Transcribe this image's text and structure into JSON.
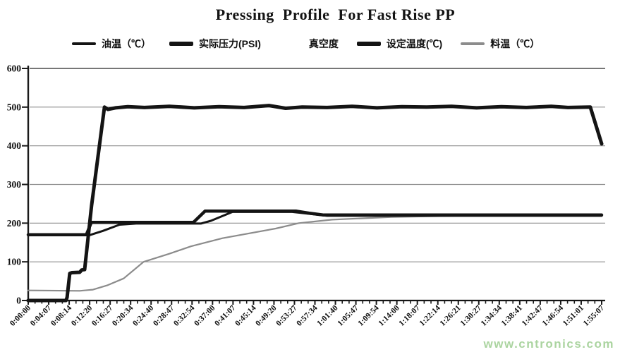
{
  "watermark": "www.cntronics.com",
  "colors": {
    "axis": "#1a1a1a",
    "grid": "#8f8f8f",
    "top_grid": "#4a4a4a",
    "tick": "#1a1a1a",
    "label": "#111111",
    "watermark_green": "#abd4a0",
    "series_black": "#141414",
    "series_gray": "#8c8c8c"
  },
  "chart_data": {
    "type": "line",
    "title": "Pressing  Profile  For Fast Rise PP",
    "xlabel": "",
    "ylabel": "",
    "grid": true,
    "legend_position": "top",
    "ylim": [
      0,
      600
    ],
    "y_ticks": [
      0,
      100,
      200,
      300,
      400,
      500,
      600
    ],
    "x_range_seconds": [
      0,
      6907
    ],
    "x_tick_labels": [
      "0:00:00",
      "0:04:07",
      "0:08:14",
      "0:12:20",
      "0:16:27",
      "0:20:34",
      "0:24:40",
      "0:28:47",
      "0:32:54",
      "0:37:00",
      "0:41:07",
      "0:45:14",
      "0:49:20",
      "0:53:27",
      "0:57:34",
      "1:01:40",
      "1:05:47",
      "1:09:54",
      "1:14:00",
      "1:18:07",
      "1:22:14",
      "1:26:21",
      "1:30:27",
      "1:34:34",
      "1:38:41",
      "1:42:47",
      "1:46:54",
      "1:51:01",
      "1:55:07"
    ],
    "series": [
      {
        "name": "油温（℃）",
        "color": "#141414",
        "width": 3,
        "legend_swatch": true,
        "points": [
          [
            0,
            169
          ],
          [
            740,
            169
          ],
          [
            900,
            180
          ],
          [
            1100,
            196
          ],
          [
            1300,
            199
          ],
          [
            2080,
            199
          ],
          [
            2200,
            206
          ],
          [
            2460,
            229
          ],
          [
            3180,
            229
          ],
          [
            3400,
            224
          ],
          [
            3600,
            219
          ],
          [
            5000,
            219
          ],
          [
            6907,
            219
          ]
        ]
      },
      {
        "name": "实际压力(PSI)",
        "color": "#141414",
        "width": 5,
        "legend_swatch": true,
        "points": [
          [
            0,
            0
          ],
          [
            440,
            0
          ],
          [
            455,
            0
          ],
          [
            468,
            8
          ],
          [
            500,
            70
          ],
          [
            527,
            72
          ],
          [
            620,
            73
          ],
          [
            645,
            79
          ],
          [
            680,
            80
          ],
          [
            763,
            245
          ],
          [
            918,
            500
          ],
          [
            960,
            494
          ],
          [
            1050,
            498
          ],
          [
            1200,
            501
          ],
          [
            1400,
            499
          ],
          [
            1700,
            502
          ],
          [
            2000,
            498
          ],
          [
            2300,
            501
          ],
          [
            2600,
            499
          ],
          [
            2900,
            504
          ],
          [
            3100,
            497
          ],
          [
            3300,
            500
          ],
          [
            3600,
            499
          ],
          [
            3900,
            502
          ],
          [
            4200,
            498
          ],
          [
            4500,
            501
          ],
          [
            4800,
            500
          ],
          [
            5100,
            502
          ],
          [
            5400,
            498
          ],
          [
            5700,
            501
          ],
          [
            6000,
            499
          ],
          [
            6300,
            502
          ],
          [
            6500,
            499
          ],
          [
            6770,
            500
          ],
          [
            6907,
            405
          ]
        ]
      },
      {
        "name": "真空度",
        "color": "#141414",
        "width": 2,
        "legend_swatch": false,
        "points": [
          [
            0,
            0
          ],
          [
            6907,
            0
          ]
        ]
      },
      {
        "name": "设定温度(℃)",
        "color": "#141414",
        "width": 4.5,
        "legend_swatch": true,
        "points": [
          [
            0,
            170
          ],
          [
            700,
            170
          ],
          [
            760,
            202
          ],
          [
            1990,
            202
          ],
          [
            2130,
            231
          ],
          [
            3230,
            231
          ],
          [
            3380,
            226
          ],
          [
            3560,
            221
          ],
          [
            6907,
            221
          ]
        ]
      },
      {
        "name": "料温（℃）",
        "color": "#8c8c8c",
        "width": 2.2,
        "legend_swatch": true,
        "points": [
          [
            0,
            26
          ],
          [
            620,
            25
          ],
          [
            780,
            28
          ],
          [
            950,
            39
          ],
          [
            1150,
            57
          ],
          [
            1390,
            100
          ],
          [
            1700,
            121
          ],
          [
            1960,
            140
          ],
          [
            2340,
            161
          ],
          [
            2980,
            186
          ],
          [
            3260,
            200
          ],
          [
            3660,
            209
          ],
          [
            4380,
            216
          ],
          [
            5200,
            219
          ],
          [
            6907,
            220
          ]
        ]
      }
    ]
  }
}
